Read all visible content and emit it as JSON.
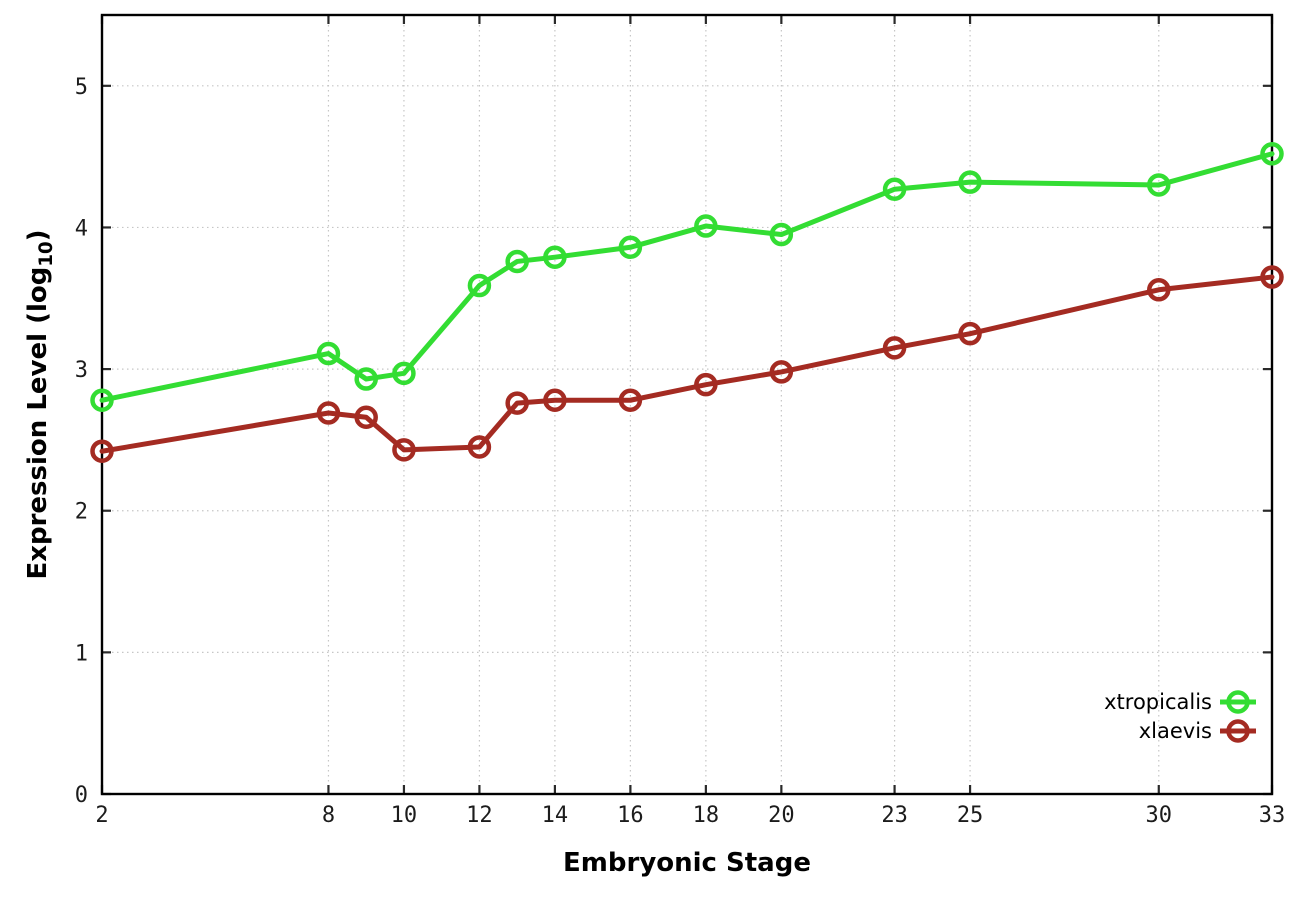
{
  "chart_data": {
    "type": "line",
    "title": "",
    "xlabel": "Embryonic Stage",
    "ylabel": "Expression Level (log10)",
    "ylabel_parts": {
      "pre": "Expression Level (log",
      "sub": "10",
      "post": ")"
    },
    "x": [
      2,
      8,
      9,
      10,
      12,
      13,
      14,
      16,
      18,
      20,
      23,
      25,
      30,
      33
    ],
    "series": [
      {
        "name": "xtropicalis",
        "color": "#33DD33",
        "values": [
          2.78,
          3.11,
          2.93,
          2.97,
          3.59,
          3.76,
          3.79,
          3.86,
          4.01,
          3.95,
          4.27,
          4.32,
          4.3,
          4.52
        ]
      },
      {
        "name": "xlaevis",
        "color": "#A42B22",
        "values": [
          2.42,
          2.69,
          2.66,
          2.43,
          2.45,
          2.76,
          2.78,
          2.78,
          2.89,
          2.98,
          3.15,
          3.25,
          3.56,
          3.65
        ]
      }
    ],
    "xlim": [
      2,
      33
    ],
    "ylim": [
      0,
      5.5
    ],
    "x_ticks": [
      2,
      8,
      10,
      12,
      14,
      16,
      18,
      20,
      23,
      25,
      30,
      33
    ],
    "x_tick_labels": [
      "2",
      "8",
      "10",
      "12",
      "14",
      "16",
      "18",
      "20",
      "23",
      "25",
      "30",
      "33"
    ],
    "y_ticks": [
      0,
      1,
      2,
      3,
      4,
      5
    ],
    "y_tick_labels": [
      "0",
      "1",
      "2",
      "3",
      "4",
      "5"
    ],
    "grid": true,
    "grid_color": "#c6c6c6",
    "border_color": "#000000",
    "tick_color": "#2a2a2a",
    "legend_position": "bottom-right",
    "marker": "open-circle"
  }
}
